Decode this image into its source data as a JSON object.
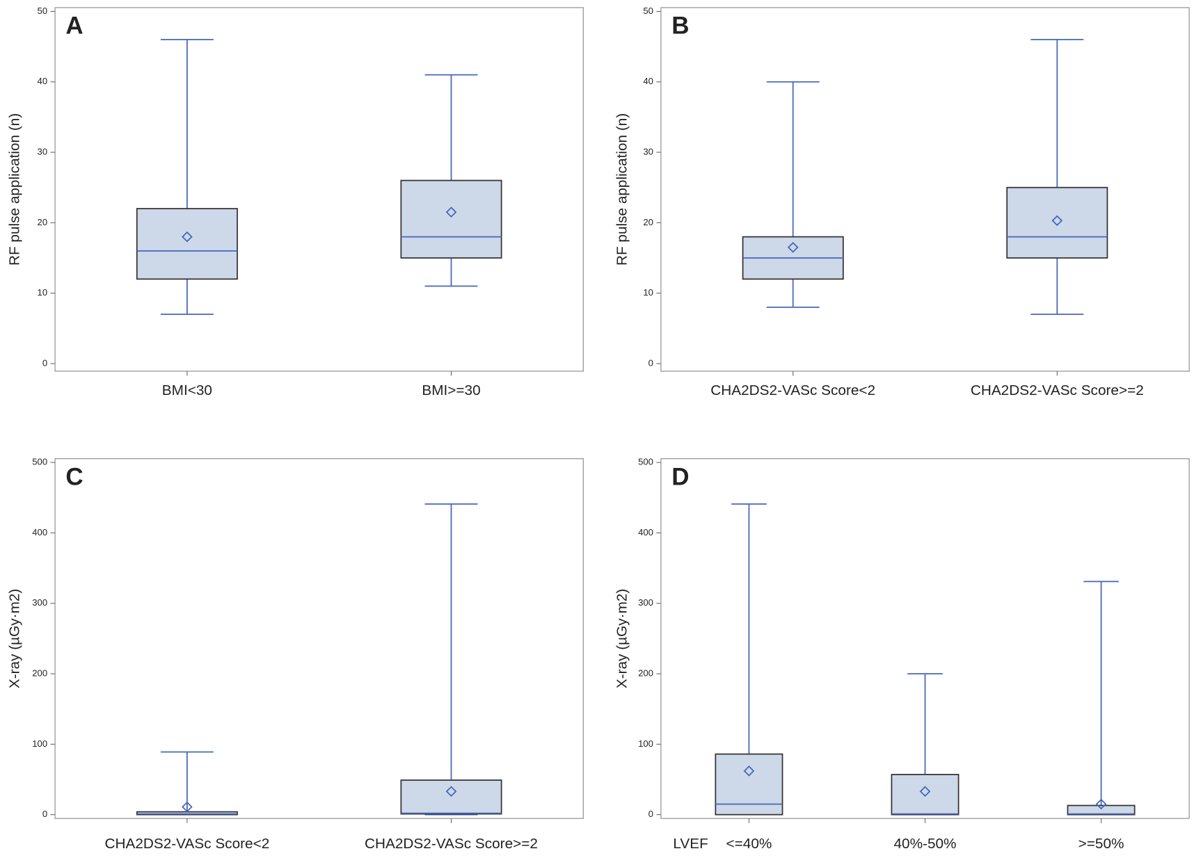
{
  "chart_data": [
    {
      "type": "box",
      "panel": "A",
      "ylabel": "RF pulse application (n)",
      "categories": [
        "BMI<30",
        "BMI>=30"
      ],
      "min": [
        7,
        11
      ],
      "q1": [
        12,
        15
      ],
      "median": [
        16,
        18
      ],
      "q3": [
        22,
        26
      ],
      "max": [
        46,
        41
      ],
      "mean": [
        18,
        21.5
      ],
      "ylim": [
        0,
        50
      ],
      "yticks": [
        0,
        10,
        20,
        30,
        40,
        50
      ],
      "color": "#cdd8e8",
      "line_color": "#4466bb"
    },
    {
      "type": "box",
      "panel": "B",
      "ylabel": "RF pulse application (n)",
      "categories": [
        "CHA2DS2-VASc Score<2",
        "CHA2DS2-VASc Score>=2"
      ],
      "min": [
        8,
        7
      ],
      "q1": [
        12,
        15
      ],
      "median": [
        15,
        18
      ],
      "q3": [
        18,
        25
      ],
      "max": [
        40,
        46
      ],
      "mean": [
        16.5,
        20.3
      ],
      "ylim": [
        0,
        50
      ],
      "yticks": [
        0,
        10,
        20,
        30,
        40,
        50
      ],
      "color": "#cdd8e8",
      "line_color": "#4466bb"
    },
    {
      "type": "box",
      "panel": "C",
      "ylabel": "X-ray (µGy·m2)",
      "categories": [
        "CHA2DS2-VASc Score<2",
        "CHA2DS2-VASc Score>=2"
      ],
      "min": [
        0,
        0
      ],
      "q1": [
        0,
        1
      ],
      "median": [
        1,
        2
      ],
      "q3": [
        4,
        49
      ],
      "max": [
        89,
        441
      ],
      "mean": [
        11,
        33
      ],
      "ylim": [
        0,
        500
      ],
      "yticks": [
        0,
        100,
        200,
        300,
        400,
        500
      ],
      "color": "#cdd8e8",
      "line_color": "#4466bb"
    },
    {
      "type": "box",
      "panel": "D",
      "ylabel": "X-ray (µGy·m2)",
      "xlabel": "LVEF",
      "categories": [
        "<=40%",
        "40%-50%",
        ">=50%"
      ],
      "min": [
        0,
        0,
        0
      ],
      "q1": [
        0,
        0,
        0
      ],
      "median": [
        15,
        1,
        1
      ],
      "q3": [
        86,
        57,
        13
      ],
      "max": [
        441,
        200,
        331
      ],
      "mean": [
        62,
        33,
        15
      ],
      "ylim": [
        0,
        500
      ],
      "yticks": [
        0,
        100,
        200,
        300,
        400,
        500
      ],
      "color": "#cdd8e8",
      "line_color": "#4466bb"
    }
  ]
}
